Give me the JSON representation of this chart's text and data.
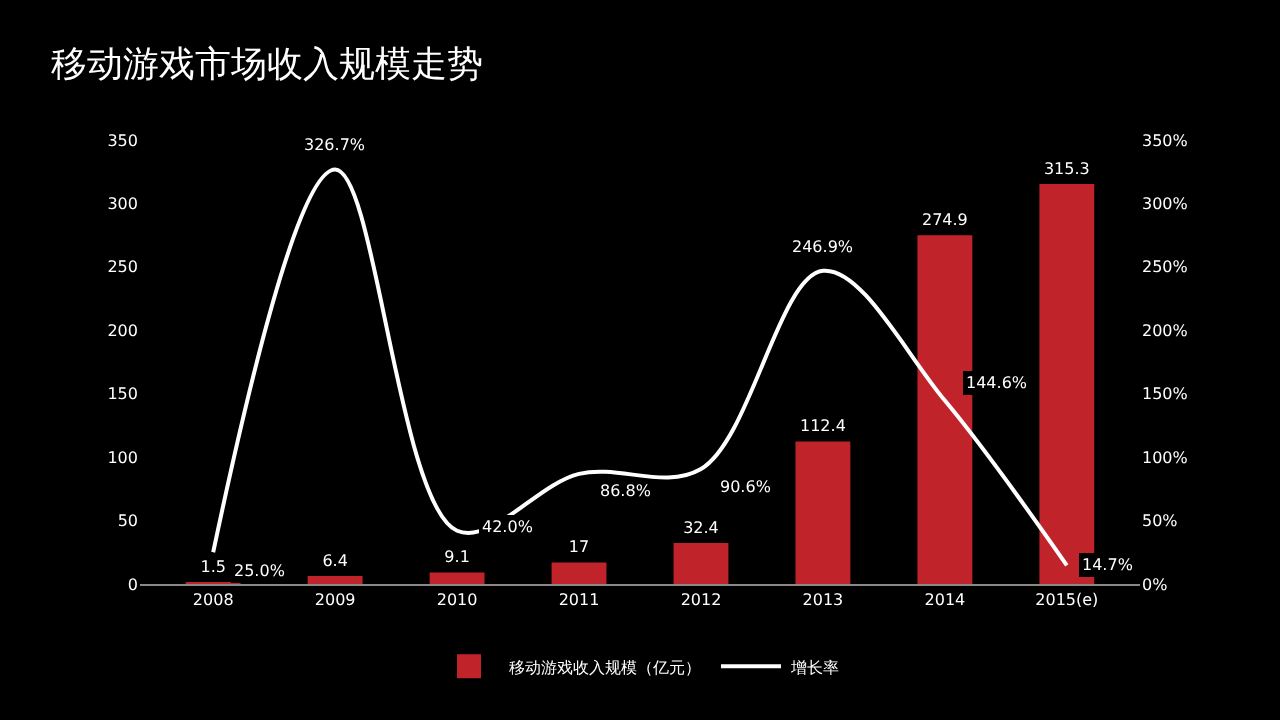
{
  "chart_data": {
    "type": "bar",
    "title": "移动游戏市场收入规模走势",
    "categories": [
      "2008",
      "2009",
      "2010",
      "2011",
      "2012",
      "2013",
      "2014",
      "2015(e)"
    ],
    "series": [
      {
        "name": "移动游戏收入规模（亿元）",
        "color": "#c0232a",
        "values": [
          1.5,
          6.4,
          9.1,
          17,
          32.4,
          112.4,
          274.9,
          315.3
        ]
      },
      {
        "name": "增长率",
        "type": "line",
        "axis": "y2",
        "color": "#ffffff",
        "values": [
          25.0,
          326.7,
          42.0,
          86.8,
          90.6,
          246.9,
          144.6,
          14.7
        ],
        "value_labels": [
          "25.0%",
          "326.7%",
          "42.0%",
          "86.8%",
          "90.6%",
          "246.9%",
          "144.6%",
          "14.7%"
        ]
      }
    ],
    "ylim": [
      0,
      350
    ],
    "yticks": [
      0,
      50,
      100,
      150,
      200,
      250,
      300,
      350
    ],
    "y2lim": [
      0,
      350
    ],
    "y2ticks": [
      {
        "value": 0,
        "label": "0%"
      },
      {
        "value": 50,
        "label": "50%"
      },
      {
        "value": 100,
        "label": "100%"
      },
      {
        "value": 150,
        "label": "150%"
      },
      {
        "value": 200,
        "label": "200%"
      },
      {
        "value": 250,
        "label": "250%"
      },
      {
        "value": 300,
        "label": "300%"
      },
      {
        "value": 350,
        "label": "350%"
      }
    ],
    "data_labels": true,
    "grid": false,
    "legend": "bottom",
    "marker": "none",
    "line_style": "solid"
  }
}
